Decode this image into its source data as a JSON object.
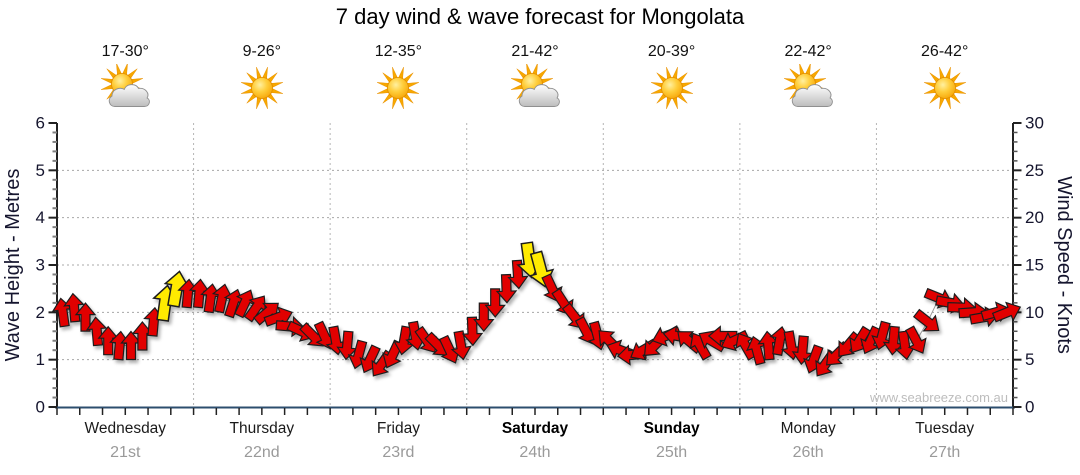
{
  "title": "7 day wind & wave forecast for Mongolata",
  "watermark": "www.seabreeze.com.au",
  "days": [
    {
      "name": "Wednesday",
      "date": "21st",
      "temp": "17-30°",
      "icon": "sun-cloud",
      "weekend": false
    },
    {
      "name": "Thursday",
      "date": "22nd",
      "temp": "9-26°",
      "icon": "sun",
      "weekend": false
    },
    {
      "name": "Friday",
      "date": "23rd",
      "temp": "12-35°",
      "icon": "sun",
      "weekend": false
    },
    {
      "name": "Saturday",
      "date": "24th",
      "temp": "21-42°",
      "icon": "sun-cloud",
      "weekend": true
    },
    {
      "name": "Sunday",
      "date": "25th",
      "temp": "20-39°",
      "icon": "sun",
      "weekend": true
    },
    {
      "name": "Monday",
      "date": "26th",
      "temp": "22-42°",
      "icon": "sun-cloud",
      "weekend": false
    },
    {
      "name": "Tuesday",
      "date": "27th",
      "temp": "26-42°",
      "icon": "sun",
      "weekend": false
    }
  ],
  "left_axis": {
    "label": "Wave Height - Metres",
    "min": 0,
    "max": 6,
    "major_step": 1,
    "ticks": [
      0,
      1,
      2,
      3,
      4,
      5,
      6
    ]
  },
  "right_axis": {
    "label": "Wind Speed - Knots",
    "min": 0,
    "max": 30,
    "major_step": 5,
    "ticks": [
      0,
      5,
      10,
      15,
      20,
      25,
      30
    ]
  },
  "colors": {
    "arrow_red": "#E10000",
    "arrow_yellow": "#FFEB00",
    "arrow_outline": "#1f1f1f",
    "axis_bottom_line": "#2C4E6E",
    "axis_line": "#222222",
    "grid": "#a8a8a8",
    "day_name": "#1a1a1a",
    "day_date": "#9a9a9a",
    "tick_label": "#15152e",
    "watermark": "#bdbdbd",
    "sun_ray": "#F7A800",
    "cloud_edge": "#909090"
  },
  "chart_data": {
    "type": "wind-arrow-timeseries",
    "title": "7 day wind & wave forecast for Mongolata",
    "categories": [
      "Wednesday 21st",
      "Thursday 22nd",
      "Friday 23rd",
      "Saturday 24th",
      "Sunday 25th",
      "Monday 26th",
      "Tuesday 27th"
    ],
    "y_left": {
      "label": "Wave Height - Metres",
      "range": [
        0,
        6
      ]
    },
    "y_right": {
      "label": "Wind Speed - Knots",
      "range": [
        0,
        30
      ]
    },
    "x_range_hours": [
      0,
      168
    ],
    "sample_interval_hours": 2,
    "direction_convention": "degrees clockwise from up = direction arrow points",
    "color_key": {
      "r": "#E10000",
      "y": "#FFEB00"
    },
    "arrows": [
      [
        1,
        10,
        -8,
        "r"
      ],
      [
        3,
        10.5,
        -5,
        "r"
      ],
      [
        5,
        9.5,
        0,
        "r"
      ],
      [
        7,
        8,
        -5,
        "r"
      ],
      [
        9,
        7,
        0,
        "r"
      ],
      [
        11,
        6.5,
        5,
        "r"
      ],
      [
        13,
        6.5,
        0,
        "r"
      ],
      [
        15,
        7.5,
        0,
        "r"
      ],
      [
        17,
        9,
        5,
        "r"
      ],
      [
        19,
        11,
        8,
        "y"
      ],
      [
        21,
        12.5,
        10,
        "y"
      ],
      [
        23,
        12,
        5,
        "r"
      ],
      [
        25,
        12,
        5,
        "r"
      ],
      [
        27,
        11.5,
        8,
        "r"
      ],
      [
        29,
        11.5,
        12,
        "r"
      ],
      [
        31,
        11,
        18,
        "r"
      ],
      [
        33,
        11,
        25,
        "r"
      ],
      [
        35,
        10.5,
        35,
        "r"
      ],
      [
        37,
        10,
        50,
        "r"
      ],
      [
        39,
        9.5,
        70,
        "r"
      ],
      [
        41,
        8.5,
        95,
        "r"
      ],
      [
        43,
        8,
        115,
        "r"
      ],
      [
        45,
        7.5,
        135,
        "r"
      ],
      [
        47,
        7.5,
        155,
        "r"
      ],
      [
        49,
        7,
        170,
        "r"
      ],
      [
        51,
        6.5,
        185,
        "r"
      ],
      [
        53,
        5.5,
        195,
        "r"
      ],
      [
        55,
        5,
        205,
        "r"
      ],
      [
        57,
        4.5,
        215,
        "r"
      ],
      [
        59,
        5.5,
        205,
        "r"
      ],
      [
        61,
        7,
        190,
        "r"
      ],
      [
        63,
        7.5,
        170,
        "r"
      ],
      [
        65,
        7,
        145,
        "r"
      ],
      [
        67,
        6.5,
        135,
        "r"
      ],
      [
        69,
        6,
        155,
        "r"
      ],
      [
        71,
        6.5,
        170,
        "r"
      ],
      [
        73,
        8,
        178,
        "r"
      ],
      [
        75,
        9.5,
        180,
        "r"
      ],
      [
        77,
        11,
        180,
        "r"
      ],
      [
        79,
        12.5,
        178,
        "r"
      ],
      [
        81,
        14,
        176,
        "r"
      ],
      [
        83,
        15.5,
        172,
        "y"
      ],
      [
        85,
        14.5,
        165,
        "y"
      ],
      [
        87,
        12.5,
        155,
        "r"
      ],
      [
        89,
        11,
        147,
        "r"
      ],
      [
        91,
        9.5,
        142,
        "r"
      ],
      [
        93,
        8,
        152,
        "r"
      ],
      [
        95,
        7.5,
        165,
        "r"
      ],
      [
        97,
        7,
        315,
        "r"
      ],
      [
        99,
        6,
        290,
        "r"
      ],
      [
        101,
        5.5,
        265,
        "r"
      ],
      [
        103,
        6,
        240,
        "r"
      ],
      [
        105,
        6.5,
        225,
        "r"
      ],
      [
        107,
        7.5,
        250,
        "r"
      ],
      [
        109,
        7.5,
        280,
        "r"
      ],
      [
        111,
        7,
        310,
        "r"
      ],
      [
        113,
        6.5,
        330,
        "r"
      ],
      [
        115,
        7,
        300,
        "r"
      ],
      [
        117,
        7.5,
        270,
        "r"
      ],
      [
        119,
        7,
        245,
        "r"
      ],
      [
        121,
        6.5,
        330,
        "r"
      ],
      [
        123,
        6,
        345,
        "r"
      ],
      [
        125,
        6.5,
        355,
        "r"
      ],
      [
        127,
        7,
        10,
        "r"
      ],
      [
        129,
        6.5,
        170,
        "r"
      ],
      [
        131,
        6,
        185,
        "r"
      ],
      [
        133,
        5,
        200,
        "r"
      ],
      [
        135,
        4.5,
        215,
        "r"
      ],
      [
        137,
        5.5,
        225,
        "r"
      ],
      [
        139,
        6.5,
        220,
        "r"
      ],
      [
        141,
        7,
        212,
        "r"
      ],
      [
        143,
        7,
        205,
        "r"
      ],
      [
        145,
        7.5,
        195,
        "r"
      ],
      [
        147,
        7,
        185,
        "r"
      ],
      [
        149,
        6.5,
        172,
        "r"
      ],
      [
        151,
        7,
        152,
        "r"
      ],
      [
        153,
        9,
        128,
        "r"
      ],
      [
        155,
        11.5,
        112,
        "r"
      ],
      [
        157,
        11,
        100,
        "r"
      ],
      [
        159,
        10.5,
        92,
        "r"
      ],
      [
        161,
        10,
        86,
        "r"
      ],
      [
        163,
        9.5,
        80,
        "r"
      ],
      [
        165,
        10,
        75,
        "r"
      ],
      [
        167,
        10,
        68,
        "r"
      ]
    ]
  }
}
